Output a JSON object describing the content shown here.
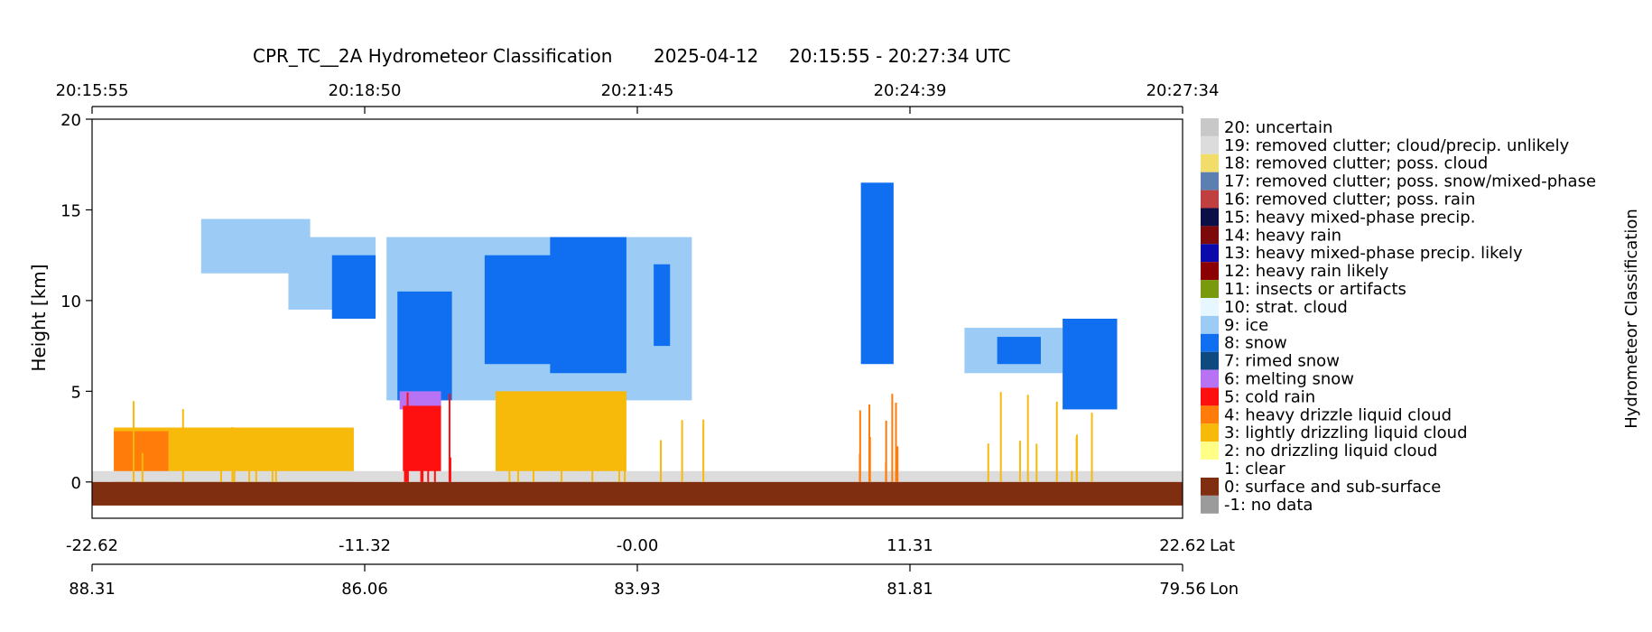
{
  "chart_data": {
    "type": "heatmap",
    "title": {
      "product": "CPR_TC__2A Hydrometeor Classification",
      "date": "2025-04-12",
      "time_range": "20:15:55 - 20:27:34 UTC"
    },
    "ylabel": "Height [km]",
    "ylim": [
      -2,
      20
    ],
    "yticks": [
      "20",
      "15",
      "10",
      "5",
      "0"
    ],
    "time_ticks": [
      "20:15:55",
      "20:18:50",
      "20:21:45",
      "20:24:39",
      "20:27:34"
    ],
    "lat_ticks": [
      "-22.62",
      "-11.32",
      "-0.00",
      "11.31",
      "22.62"
    ],
    "lat_label": "Lat",
    "lon_ticks": [
      "88.31",
      "86.06",
      "83.93",
      "81.81",
      "79.56"
    ],
    "lon_label": "Lon",
    "colorbar_label": "Hydrometeor Classification",
    "classes": [
      {
        "code": 20,
        "label": "20: uncertain",
        "color": "#c8c8c8"
      },
      {
        "code": 19,
        "label": "19: removed clutter; cloud/precip. unlikely",
        "color": "#dcdcdc"
      },
      {
        "code": 18,
        "label": "18: removed clutter; poss. cloud",
        "color": "#f2dd6b"
      },
      {
        "code": 17,
        "label": "17: removed clutter; poss. snow/mixed-phase",
        "color": "#5b7fb0"
      },
      {
        "code": 16,
        "label": "16: removed clutter; poss. rain",
        "color": "#c04040"
      },
      {
        "code": 15,
        "label": "15: heavy mixed-phase precip.",
        "color": "#0a0f45"
      },
      {
        "code": 14,
        "label": "14: heavy rain",
        "color": "#7d0a0a"
      },
      {
        "code": 13,
        "label": "13: heavy mixed-phase precip. likely",
        "color": "#0a0aaa"
      },
      {
        "code": 12,
        "label": "12: heavy rain likely",
        "color": "#8b0000"
      },
      {
        "code": 11,
        "label": "11: insects or artifacts",
        "color": "#7a9a0e"
      },
      {
        "code": 10,
        "label": "10: strat. cloud",
        "color": "#e6f7ff"
      },
      {
        "code": 9,
        "label": "9: ice",
        "color": "#9cccf5"
      },
      {
        "code": 8,
        "label": "8: snow",
        "color": "#0f6ff0"
      },
      {
        "code": 7,
        "label": "7: rimed snow",
        "color": "#0e4a80"
      },
      {
        "code": 6,
        "label": "6: melting snow",
        "color": "#b873f5"
      },
      {
        "code": 5,
        "label": "5: cold rain",
        "color": "#ff1010"
      },
      {
        "code": 4,
        "label": "4: heavy drizzle liquid cloud",
        "color": "#ff7c0a"
      },
      {
        "code": 3,
        "label": "3: lightly drizzling liquid cloud",
        "color": "#f7b90a"
      },
      {
        "code": 2,
        "label": "2: no drizzling liquid cloud",
        "color": "#ffff88"
      },
      {
        "code": 1,
        "label": "1: clear",
        "color": "#ffffff"
      },
      {
        "code": 0,
        "label": "0: surface and sub-surface",
        "color": "#7f2f0f"
      },
      {
        "code": -1,
        "label": "-1: no data",
        "color": "#9b9b9b"
      }
    ],
    "grid": false,
    "legend": "right colorbar",
    "features": [
      {
        "class": 9,
        "x": [
          0.1,
          0.2
        ],
        "y": [
          11.5,
          14.5
        ]
      },
      {
        "class": 9,
        "x": [
          0.18,
          0.26
        ],
        "y": [
          9.5,
          13.5
        ]
      },
      {
        "class": 8,
        "x": [
          0.22,
          0.26
        ],
        "y": [
          9.0,
          12.5
        ]
      },
      {
        "class": 9,
        "x": [
          0.27,
          0.55
        ],
        "y": [
          4.5,
          13.5
        ]
      },
      {
        "class": 8,
        "x": [
          0.28,
          0.33
        ],
        "y": [
          4.5,
          10.5
        ]
      },
      {
        "class": 8,
        "x": [
          0.36,
          0.45
        ],
        "y": [
          6.5,
          12.5
        ]
      },
      {
        "class": 8,
        "x": [
          0.42,
          0.49
        ],
        "y": [
          6.0,
          13.5
        ]
      },
      {
        "class": 8,
        "x": [
          0.515,
          0.53
        ],
        "y": [
          7.5,
          12.0
        ]
      },
      {
        "class": 6,
        "x": [
          0.282,
          0.32
        ],
        "y": [
          4.0,
          5.0
        ]
      },
      {
        "class": 5,
        "x": [
          0.285,
          0.32
        ],
        "y": [
          0.2,
          4.2
        ]
      },
      {
        "class": 8,
        "x": [
          0.705,
          0.735
        ],
        "y": [
          6.5,
          16.5
        ]
      },
      {
        "class": 9,
        "x": [
          0.8,
          0.89
        ],
        "y": [
          6.0,
          8.5
        ]
      },
      {
        "class": 8,
        "x": [
          0.83,
          0.87
        ],
        "y": [
          6.5,
          8.0
        ]
      },
      {
        "class": 8,
        "x": [
          0.89,
          0.94
        ],
        "y": [
          4.0,
          9.0
        ]
      },
      {
        "class": 3,
        "x": [
          0.02,
          0.24
        ],
        "y": [
          0.0,
          3.0
        ]
      },
      {
        "class": 4,
        "x": [
          0.02,
          0.07
        ],
        "y": [
          0.0,
          2.8
        ]
      },
      {
        "class": 3,
        "x": [
          0.37,
          0.49
        ],
        "y": [
          0.0,
          5.0
        ]
      },
      {
        "class": 19,
        "x": [
          0.0,
          1.0
        ],
        "y": [
          0.0,
          0.6
        ]
      },
      {
        "class": 0,
        "x": [
          0.0,
          1.0
        ],
        "y": [
          -1.3,
          0.0
        ]
      }
    ]
  }
}
